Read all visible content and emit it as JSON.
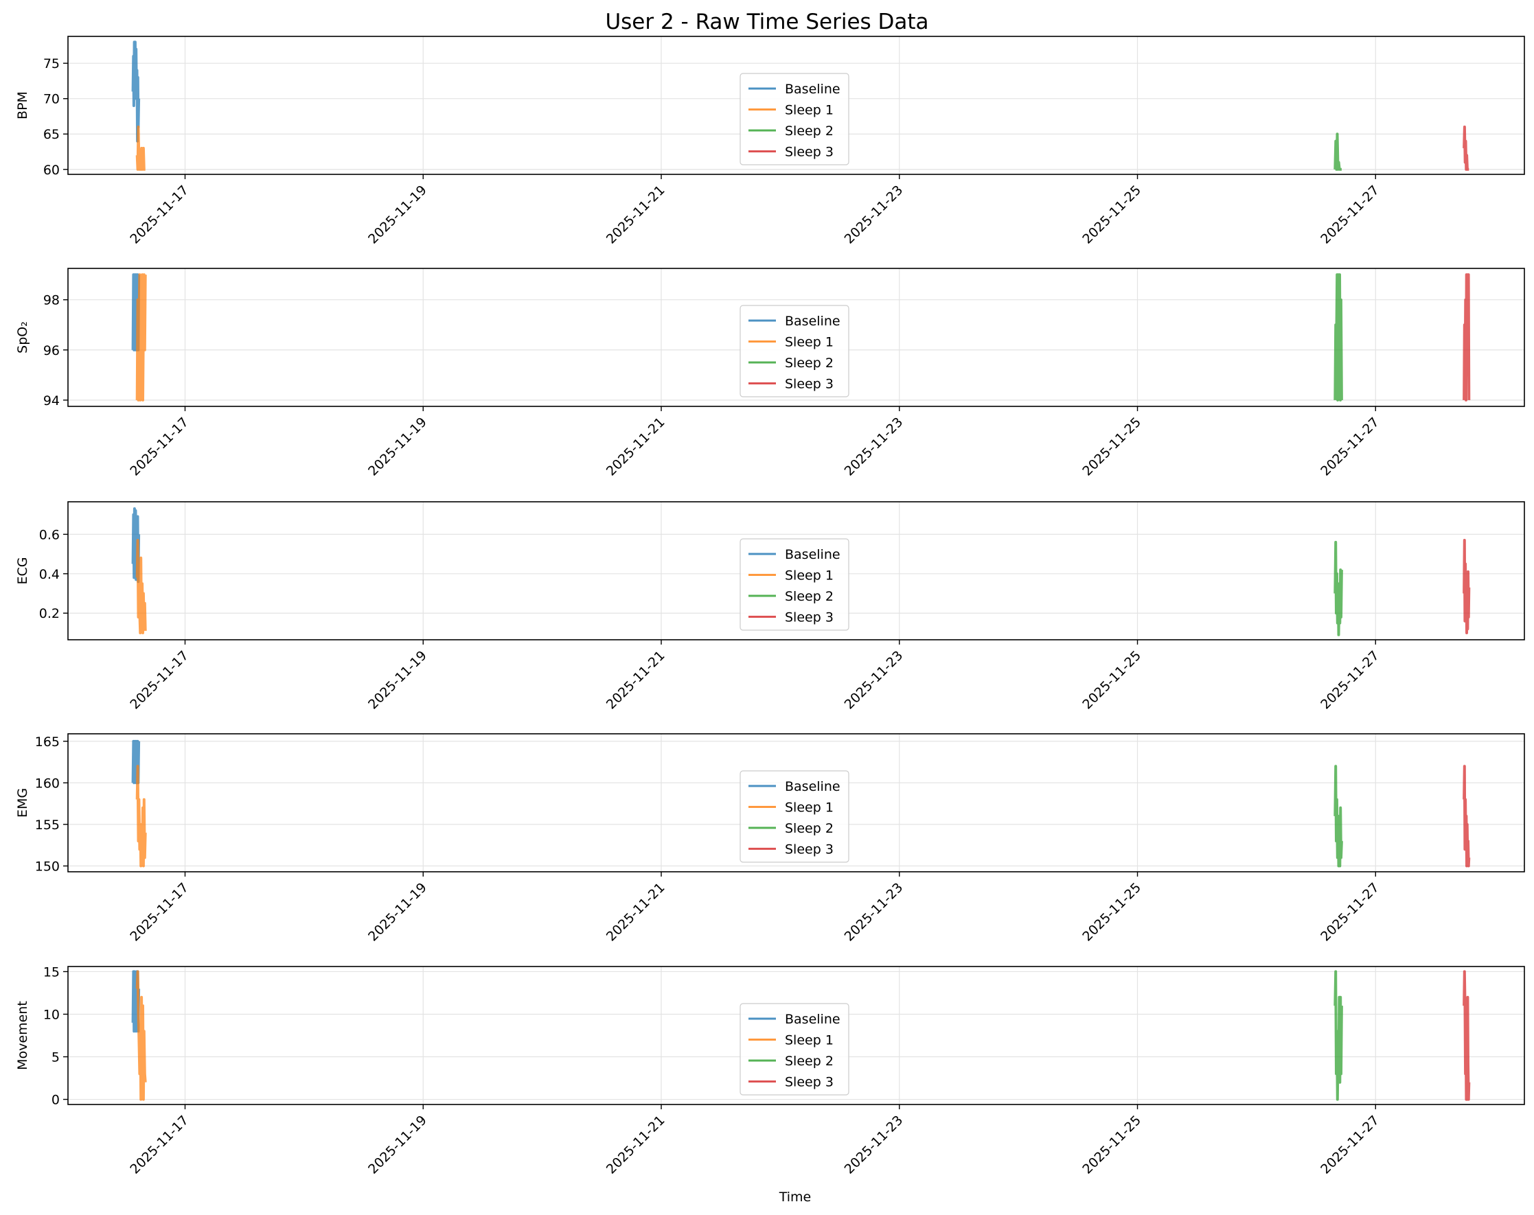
{
  "title": "User 2 - Raw Time Series Data",
  "x_axis_label": "Time",
  "colors": {
    "Baseline": "#1f77b4",
    "Sleep 1": "#ff7f0e",
    "Sleep 2": "#2ca02c",
    "Sleep 3": "#d62728"
  },
  "chart_data": [
    {
      "type": "line",
      "ylabel": "BPM",
      "xlim": [
        "2025-11-16T00:24",
        "2025-11-28T06:00"
      ],
      "ylim": [
        59.3,
        78.8
      ],
      "yticks": [
        60,
        65,
        70,
        75
      ],
      "xticks": [
        "2025-11-17",
        "2025-11-19",
        "2025-11-21",
        "2025-11-23",
        "2025-11-25",
        "2025-11-27"
      ],
      "legend": "center",
      "grid": true,
      "series": [
        {
          "name": "Baseline",
          "t0": "2025-11-16T13:30",
          "t1": "2025-11-16T14:40",
          "y": [
            71,
            76,
            69,
            78,
            70,
            78,
            72,
            77,
            71,
            74,
            64,
            73,
            66,
            70
          ]
        },
        {
          "name": "Sleep 1",
          "t0": "2025-11-16T14:20",
          "t1": "2025-11-16T16:00",
          "y": [
            62,
            60,
            66,
            61,
            60,
            62,
            60,
            63,
            60,
            61,
            63,
            60,
            60,
            60
          ]
        },
        {
          "name": "Sleep 2",
          "t0": "2025-11-26T15:50",
          "t1": "2025-11-26T17:10",
          "y": [
            60,
            64,
            60,
            65,
            60,
            61,
            60,
            60,
            60,
            60
          ]
        },
        {
          "name": "Sleep 3",
          "t0": "2025-11-27T17:50",
          "t1": "2025-11-27T18:50",
          "y": [
            63,
            66,
            61,
            64,
            60,
            62,
            60,
            60,
            60,
            60
          ]
        }
      ]
    },
    {
      "type": "line",
      "ylabel": "SpO₂",
      "xlim": [
        "2025-11-16T00:24",
        "2025-11-28T06:00"
      ],
      "ylim": [
        93.75,
        99.25
      ],
      "yticks": [
        94,
        96,
        98
      ],
      "xticks": [
        "2025-11-17",
        "2025-11-19",
        "2025-11-21",
        "2025-11-23",
        "2025-11-25",
        "2025-11-27"
      ],
      "legend": "center",
      "grid": true,
      "series": [
        {
          "name": "Baseline",
          "t0": "2025-11-16T13:30",
          "t1": "2025-11-16T14:40",
          "y": [
            96,
            99,
            96,
            99,
            96,
            99,
            96,
            99,
            96,
            99,
            96,
            99
          ]
        },
        {
          "name": "Sleep 1",
          "t0": "2025-11-16T14:20",
          "t1": "2025-11-16T16:00",
          "y": [
            94,
            98,
            94,
            97,
            99,
            94,
            98,
            96,
            99,
            94,
            97,
            99,
            96,
            99
          ]
        },
        {
          "name": "Sleep 2",
          "t0": "2025-11-26T15:50",
          "t1": "2025-11-26T17:10",
          "y": [
            94,
            97,
            96,
            99,
            94,
            99,
            97,
            99,
            94,
            98,
            94
          ]
        },
        {
          "name": "Sleep 3",
          "t0": "2025-11-27T17:50",
          "t1": "2025-11-27T18:50",
          "y": [
            94,
            97,
            95,
            98,
            94,
            99,
            97,
            99,
            95,
            99,
            94
          ]
        }
      ]
    },
    {
      "type": "line",
      "ylabel": "ECG",
      "xlim": [
        "2025-11-16T00:24",
        "2025-11-28T06:00"
      ],
      "ylim": [
        0.065,
        0.765
      ],
      "yticks": [
        0.2,
        0.4,
        0.6
      ],
      "xticks": [
        "2025-11-17",
        "2025-11-19",
        "2025-11-21",
        "2025-11-23",
        "2025-11-25",
        "2025-11-27"
      ],
      "legend": "center",
      "grid": true,
      "series": [
        {
          "name": "Baseline",
          "t0": "2025-11-16T13:30",
          "t1": "2025-11-16T14:40",
          "y": [
            0.45,
            0.7,
            0.38,
            0.73,
            0.42,
            0.72,
            0.37,
            0.6,
            0.4,
            0.69,
            0.36,
            0.6
          ]
        },
        {
          "name": "Sleep 1",
          "t0": "2025-11-16T14:20",
          "t1": "2025-11-16T16:00",
          "y": [
            0.38,
            0.57,
            0.18,
            0.45,
            0.2,
            0.1,
            0.48,
            0.12,
            0.35,
            0.1,
            0.3,
            0.15,
            0.25,
            0.11
          ]
        },
        {
          "name": "Sleep 2",
          "t0": "2025-11-26T15:50",
          "t1": "2025-11-26T17:10",
          "y": [
            0.3,
            0.56,
            0.2,
            0.4,
            0.15,
            0.35,
            0.09,
            0.28,
            0.15,
            0.42,
            0.18,
            0.42
          ]
        },
        {
          "name": "Sleep 3",
          "t0": "2025-11-27T17:50",
          "t1": "2025-11-27T18:50",
          "y": [
            0.3,
            0.57,
            0.16,
            0.45,
            0.22,
            0.32,
            0.1,
            0.3,
            0.12,
            0.41,
            0.18,
            0.33
          ]
        }
      ]
    },
    {
      "type": "line",
      "ylabel": "EMG",
      "xlim": [
        "2025-11-16T00:24",
        "2025-11-28T06:00"
      ],
      "ylim": [
        149.3,
        165.9
      ],
      "yticks": [
        150,
        155,
        160,
        165
      ],
      "xticks": [
        "2025-11-17",
        "2025-11-19",
        "2025-11-21",
        "2025-11-23",
        "2025-11-25",
        "2025-11-27"
      ],
      "legend": "center",
      "grid": true,
      "series": [
        {
          "name": "Baseline",
          "t0": "2025-11-16T13:30",
          "t1": "2025-11-16T14:40",
          "y": [
            160,
            165,
            160,
            165,
            161,
            165,
            160,
            165,
            160,
            165,
            160,
            165
          ]
        },
        {
          "name": "Sleep 1",
          "t0": "2025-11-16T14:20",
          "t1": "2025-11-16T16:00",
          "y": [
            158,
            162,
            153,
            158,
            152,
            155,
            150,
            155,
            151,
            157,
            150,
            158,
            151,
            154
          ]
        },
        {
          "name": "Sleep 2",
          "t0": "2025-11-26T15:50",
          "t1": "2025-11-26T17:10",
          "y": [
            156,
            162,
            153,
            158,
            151,
            156,
            150,
            155,
            150,
            157,
            151,
            153
          ]
        },
        {
          "name": "Sleep 3",
          "t0": "2025-11-27T17:50",
          "t1": "2025-11-27T18:50",
          "y": [
            158,
            162,
            152,
            158,
            153,
            156,
            150,
            155,
            151,
            153,
            150,
            151
          ]
        }
      ]
    },
    {
      "type": "line",
      "ylabel": "Movement",
      "xlim": [
        "2025-11-16T00:24",
        "2025-11-28T06:00"
      ],
      "ylim": [
        -0.6,
        15.6
      ],
      "yticks": [
        0,
        5,
        10,
        15
      ],
      "xticks": [
        "2025-11-17",
        "2025-11-19",
        "2025-11-21",
        "2025-11-23",
        "2025-11-25",
        "2025-11-27"
      ],
      "legend": "center",
      "grid": true,
      "series": [
        {
          "name": "Baseline",
          "t0": "2025-11-16T13:30",
          "t1": "2025-11-16T14:40",
          "y": [
            9,
            15,
            8,
            15,
            9,
            14,
            8,
            15,
            10,
            15,
            8,
            13
          ]
        },
        {
          "name": "Sleep 1",
          "t0": "2025-11-16T14:20",
          "t1": "2025-11-16T16:00",
          "y": [
            13,
            15,
            10,
            7,
            3,
            8,
            0,
            12,
            2,
            11,
            0,
            8,
            3,
            2
          ]
        },
        {
          "name": "Sleep 2",
          "t0": "2025-11-26T15:50",
          "t1": "2025-11-26T17:10",
          "y": [
            11,
            15,
            3,
            8,
            0,
            6,
            3,
            12,
            2,
            12,
            3,
            11
          ]
        },
        {
          "name": "Sleep 3",
          "t0": "2025-11-27T17:50",
          "t1": "2025-11-27T18:50",
          "y": [
            11,
            15,
            12,
            3,
            8,
            0,
            4,
            0,
            12,
            4,
            0,
            2
          ]
        }
      ]
    }
  ]
}
